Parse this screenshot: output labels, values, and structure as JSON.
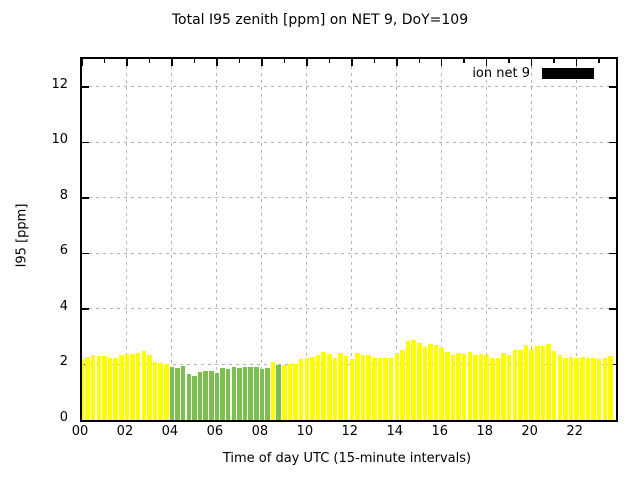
{
  "chart_data": {
    "type": "bar",
    "title": "Total I95 zenith [ppm] on NET 9, DoY=109",
    "xlabel": "Time of day UTC (15-minute intervals)",
    "ylabel": "I95 [ppm]",
    "legend": {
      "label": "ion net 9",
      "swatch_color": "#000000",
      "position": "top-right-inside"
    },
    "grid": true,
    "interval_minutes": 15,
    "x_range_hours": [
      0,
      23.75
    ],
    "ylim": [
      0,
      13
    ],
    "y_ticks": [
      "0",
      "2",
      "4",
      "6",
      "8",
      "10",
      "12"
    ],
    "y_tick_values": [
      0,
      2,
      4,
      6,
      8,
      10,
      12
    ],
    "x_ticks": [
      "00",
      "02",
      "04",
      "06",
      "08",
      "10",
      "12",
      "14",
      "16",
      "18",
      "20",
      "22"
    ],
    "x_tick_hours": [
      0,
      2,
      4,
      6,
      8,
      10,
      12,
      14,
      16,
      18,
      20,
      22
    ],
    "minor_x_tick_every_hours": 1,
    "colors": {
      "bar_default": "#ffff00",
      "bar_highlight": "#7dbe50",
      "grid": "#b4b4b4",
      "border": "#000000"
    },
    "series": [
      {
        "name": "ion net 9",
        "times": [
          "00:00",
          "00:15",
          "00:30",
          "00:45",
          "01:00",
          "01:15",
          "01:30",
          "01:45",
          "02:00",
          "02:15",
          "02:30",
          "02:45",
          "03:00",
          "03:15",
          "03:30",
          "03:45",
          "04:00",
          "04:15",
          "04:30",
          "04:45",
          "05:00",
          "05:15",
          "05:30",
          "05:45",
          "06:00",
          "06:15",
          "06:30",
          "06:45",
          "07:00",
          "07:15",
          "07:30",
          "07:45",
          "08:00",
          "08:15",
          "08:30",
          "08:45",
          "09:00",
          "09:15",
          "09:30",
          "09:45",
          "10:00",
          "10:15",
          "10:30",
          "10:45",
          "11:00",
          "11:15",
          "11:30",
          "11:45",
          "12:00",
          "12:15",
          "12:30",
          "12:45",
          "13:00",
          "13:15",
          "13:30",
          "13:45",
          "14:00",
          "14:15",
          "14:30",
          "14:45",
          "15:00",
          "15:15",
          "15:30",
          "15:45",
          "16:00",
          "16:15",
          "16:30",
          "16:45",
          "17:00",
          "17:15",
          "17:30",
          "17:45",
          "18:00",
          "18:15",
          "18:30",
          "18:45",
          "19:00",
          "19:15",
          "19:30",
          "19:45",
          "20:00",
          "20:15",
          "20:30",
          "20:45",
          "21:00",
          "21:15",
          "21:30",
          "21:45",
          "22:00",
          "22:15",
          "22:30",
          "22:45",
          "23:00",
          "23:15",
          "23:30"
        ],
        "values": [
          2.19,
          2.27,
          2.35,
          2.31,
          2.31,
          2.25,
          2.22,
          2.33,
          2.36,
          2.38,
          2.41,
          2.48,
          2.33,
          2.09,
          2.06,
          2.03,
          1.91,
          1.89,
          1.93,
          1.65,
          1.58,
          1.73,
          1.76,
          1.76,
          1.71,
          1.86,
          1.82,
          1.9,
          1.86,
          1.92,
          1.9,
          1.92,
          1.84,
          1.86,
          2.09,
          1.97,
          1.99,
          2.03,
          2.01,
          2.19,
          2.25,
          2.27,
          2.35,
          2.45,
          2.37,
          2.23,
          2.43,
          2.31,
          2.19,
          2.43,
          2.35,
          2.33,
          2.25,
          2.25,
          2.24,
          2.25,
          2.41,
          2.53,
          2.85,
          2.89,
          2.77,
          2.63,
          2.75,
          2.69,
          2.59,
          2.45,
          2.33,
          2.42,
          2.39,
          2.45,
          2.33,
          2.36,
          2.33,
          2.25,
          2.25,
          2.41,
          2.33,
          2.53,
          2.51,
          2.69,
          2.57,
          2.65,
          2.65,
          2.75,
          2.48,
          2.33,
          2.25,
          2.27,
          2.25,
          2.27,
          2.25,
          2.22,
          2.18,
          2.22,
          2.29
        ],
        "highlight_indices": [
          16,
          17,
          18,
          19,
          20,
          21,
          22,
          23,
          24,
          25,
          26,
          27,
          28,
          29,
          30,
          31,
          32,
          33,
          35
        ]
      }
    ]
  }
}
